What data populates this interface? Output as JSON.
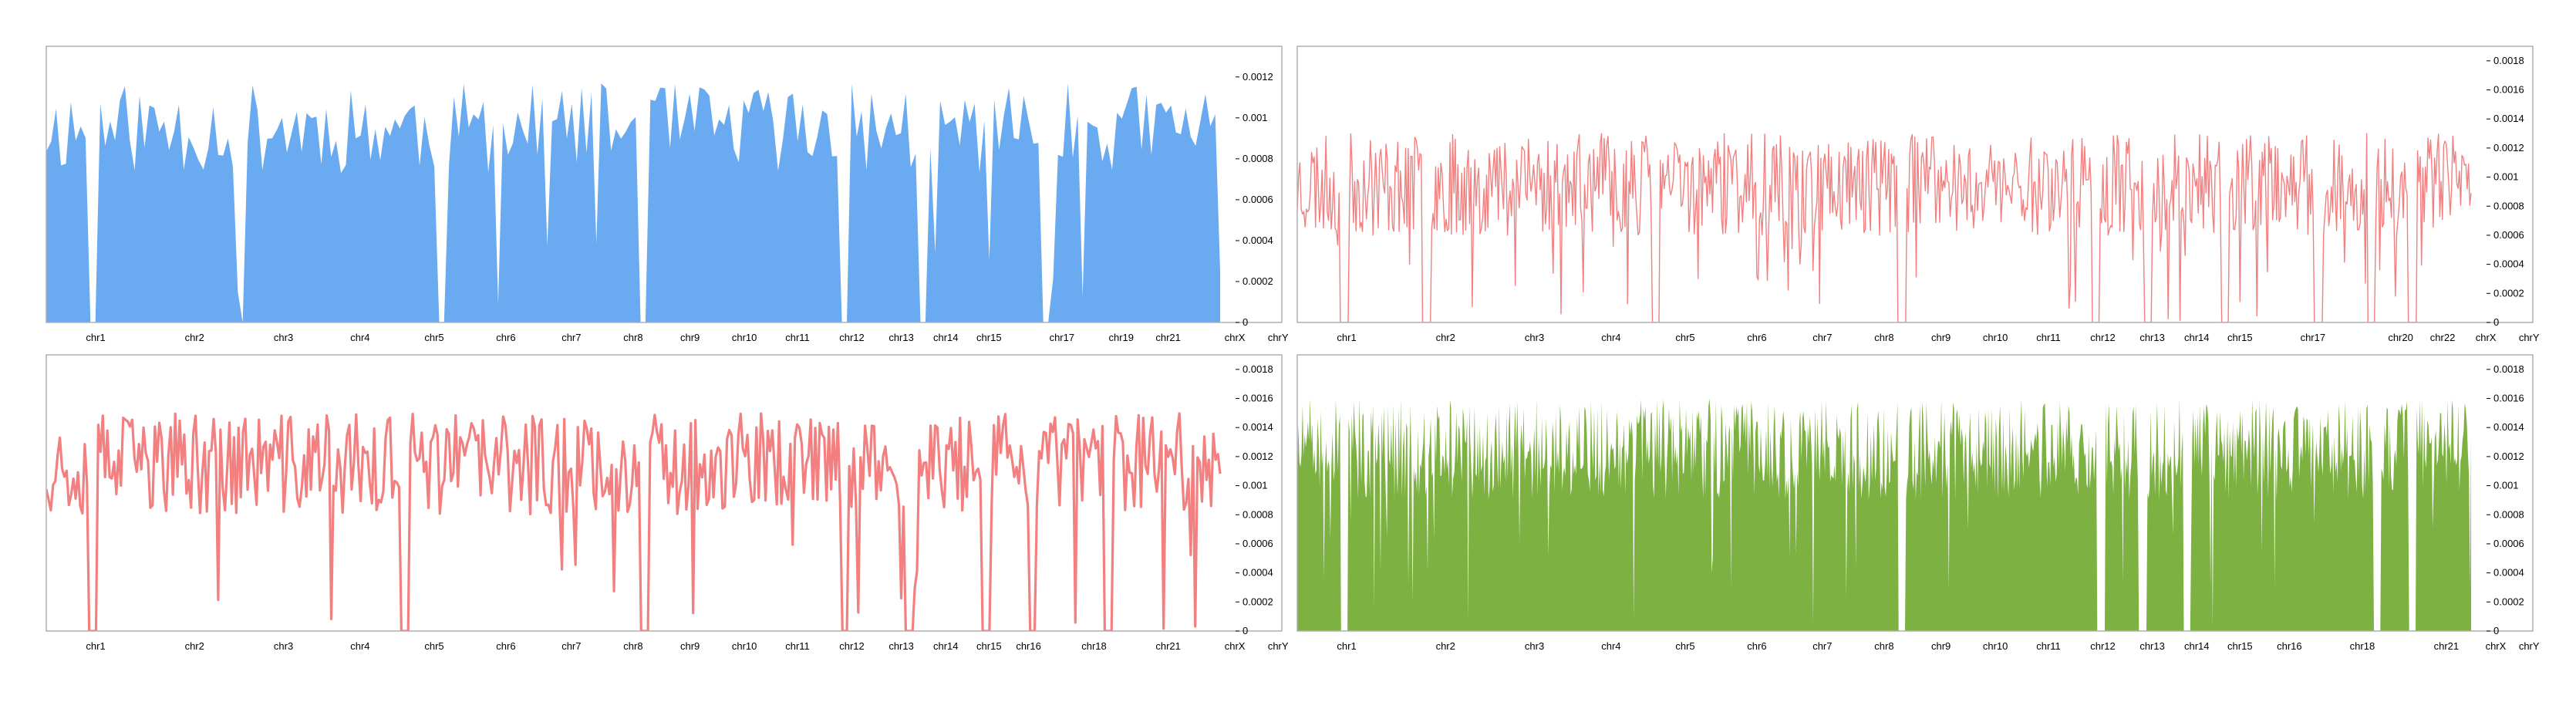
{
  "chart_data": [
    {
      "type": "area",
      "panel": "top-left",
      "series_style": "filled",
      "color": "#6aaaf0",
      "ylim": [
        0,
        0.00135
      ],
      "yticks": [
        "0",
        "0.0002",
        "0.0004",
        "0.0006",
        "0.0008",
        "0.001",
        "0.0012"
      ],
      "y_axis_side": "right",
      "xlabels": [
        "chr1",
        "chr2",
        "chr3",
        "chr4",
        "chr5",
        "chr6",
        "chr7",
        "chr8",
        "chr9",
        "chr10",
        "chr11",
        "chr12",
        "chr13",
        "chr14",
        "chr15",
        "chr17",
        "chr19",
        "chr21",
        "chrX",
        "chrY"
      ],
      "xlabel_positions": [
        0.04,
        0.12,
        0.192,
        0.254,
        0.314,
        0.372,
        0.425,
        0.475,
        0.521,
        0.565,
        0.608,
        0.652,
        0.692,
        0.728,
        0.763,
        0.822,
        0.87,
        0.908,
        0.962,
        0.997
      ],
      "gaps": [
        0.04,
        0.168,
        0.338,
        0.507,
        0.68,
        0.748,
        0.852
      ],
      "mean": 0.00095,
      "spread": 0.00022,
      "points": 240,
      "seed": 11
    },
    {
      "type": "line",
      "panel": "top-right",
      "series_style": "thin-line",
      "color": "#f28080",
      "ylim": [
        0,
        0.0019
      ],
      "yticks": [
        "0",
        "0.0002",
        "0.0004",
        "0.0006",
        "0.0008",
        "0.001",
        "0.0012",
        "0.0014",
        "0.0016",
        "0.0018"
      ],
      "y_axis_side": "right",
      "xlabels": [
        "chr1",
        "chr2",
        "chr3",
        "chr4",
        "chr5",
        "chr6",
        "chr7",
        "chr8",
        "chr9",
        "chr10",
        "chr11",
        "chr12",
        "chr13",
        "chr14",
        "chr15",
        "chr17",
        "chr20",
        "chr22",
        "chrX",
        "chrY"
      ],
      "xlabel_positions": [
        0.04,
        0.12,
        0.192,
        0.254,
        0.314,
        0.372,
        0.425,
        0.475,
        0.521,
        0.565,
        0.608,
        0.652,
        0.692,
        0.728,
        0.763,
        0.822,
        0.893,
        0.927,
        0.962,
        0.997
      ],
      "gaps": [
        0.04,
        0.11,
        0.305,
        0.515,
        0.68,
        0.725,
        0.79,
        0.87,
        0.915,
        0.95
      ],
      "mean": 0.00095,
      "spread": 0.00035,
      "points": 900,
      "seed": 23
    },
    {
      "type": "line",
      "panel": "bottom-left",
      "series_style": "thick-line",
      "color": "#f28080",
      "ylim": [
        0,
        0.0019
      ],
      "yticks": [
        "0",
        "0.0002",
        "0.0004",
        "0.0006",
        "0.0008",
        "0.001",
        "0.0012",
        "0.0014",
        "0.0016",
        "0.0018"
      ],
      "y_axis_side": "right",
      "xlabels": [
        "chr1",
        "chr2",
        "chr3",
        "chr4",
        "chr5",
        "chr6",
        "chr7",
        "chr8",
        "chr9",
        "chr10",
        "chr11",
        "chr12",
        "chr13",
        "chr14",
        "chr15",
        "chr16",
        "chr18",
        "chr21",
        "chrX",
        "chrY"
      ],
      "xlabel_positions": [
        0.04,
        0.12,
        0.192,
        0.254,
        0.314,
        0.372,
        0.425,
        0.475,
        0.521,
        0.565,
        0.608,
        0.652,
        0.692,
        0.728,
        0.763,
        0.795,
        0.848,
        0.908,
        0.962,
        0.997
      ],
      "gaps": [
        0.04,
        0.305,
        0.51,
        0.68,
        0.735,
        0.8,
        0.84,
        0.905
      ],
      "mean": 0.00115,
      "spread": 0.00035,
      "points": 520,
      "seed": 37
    },
    {
      "type": "area",
      "panel": "bottom-right",
      "series_style": "filled",
      "color": "#7db243",
      "ylim": [
        0,
        0.0019
      ],
      "yticks": [
        "0",
        "0.0002",
        "0.0004",
        "0.0006",
        "0.0008",
        "0.001",
        "0.0012",
        "0.0014",
        "0.0016",
        "0.0018"
      ],
      "y_axis_side": "right",
      "xlabels": [
        "chr1",
        "chr2",
        "chr3",
        "chr4",
        "chr5",
        "chr6",
        "chr7",
        "chr8",
        "chr9",
        "chr10",
        "chr11",
        "chr12",
        "chr13",
        "chr14",
        "chr15",
        "chr16",
        "chr18",
        "chr21",
        "chrX",
        "chrY"
      ],
      "xlabel_positions": [
        0.04,
        0.12,
        0.192,
        0.254,
        0.314,
        0.372,
        0.425,
        0.475,
        0.521,
        0.565,
        0.608,
        0.652,
        0.692,
        0.728,
        0.763,
        0.803,
        0.862,
        0.93,
        0.97,
        0.997
      ],
      "gaps": [
        0.04,
        0.515,
        0.685,
        0.72,
        0.758,
        0.92,
        0.95
      ],
      "mean": 0.00125,
      "spread": 0.00035,
      "points": 1100,
      "seed": 51
    }
  ]
}
